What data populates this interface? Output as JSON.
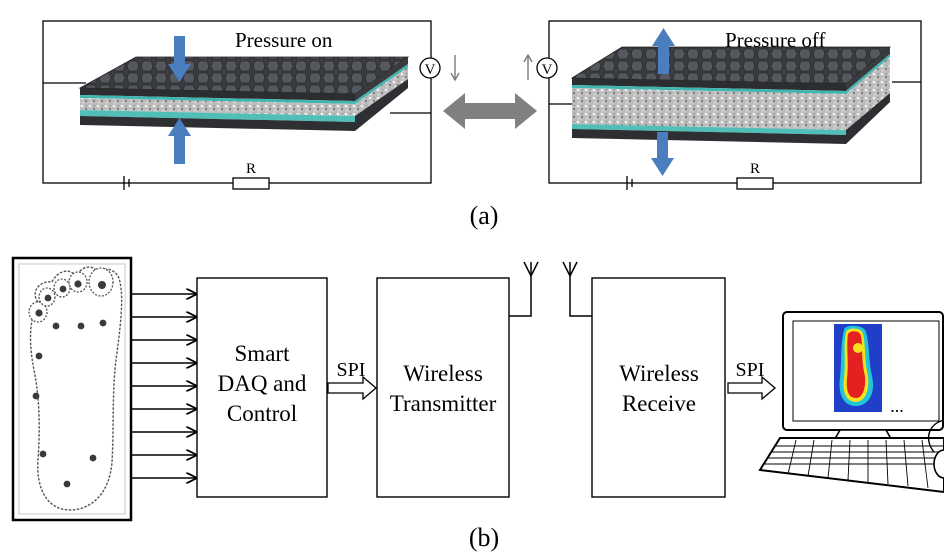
{
  "panel_a": {
    "left": {
      "title": "Pressure on",
      "meter": "V",
      "resistor": "R"
    },
    "right": {
      "title": "Pressure off",
      "meter": "V",
      "resistor": "R"
    },
    "caption": "(a)"
  },
  "panel_b": {
    "blocks": {
      "daq": [
        "Smart",
        "DAQ and",
        "Control"
      ],
      "transmitter": [
        "Wireless",
        "Transmitter"
      ],
      "receiver": [
        "Wireless",
        "Receive"
      ]
    },
    "links": {
      "spi_1": "SPI",
      "spi_2": "SPI"
    },
    "monitor_ellipsis": "...",
    "caption": "(b)"
  },
  "colors": {
    "pressure_arrow": "#4a7ebf",
    "double_arrow": "#808080",
    "accent_layer": "#3fb7b0",
    "foam": "#c8c8c8"
  }
}
